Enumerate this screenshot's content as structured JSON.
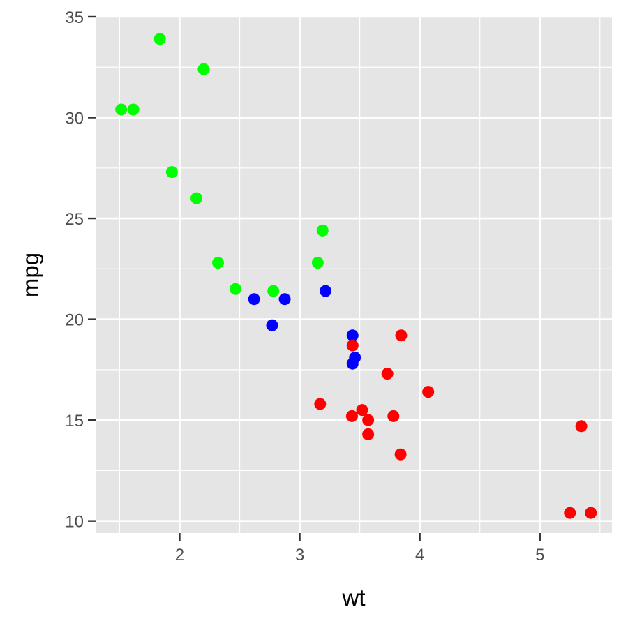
{
  "chart_data": {
    "type": "scatter",
    "title": "",
    "xlabel": "wt",
    "ylabel": "mpg",
    "xlim": [
      1.3,
      5.6
    ],
    "ylim": [
      9.4,
      35.0
    ],
    "xticks": [
      2,
      3,
      4,
      5
    ],
    "yticks": [
      10,
      15,
      20,
      25,
      30,
      35
    ],
    "x_tick_labels": [
      "2",
      "3",
      "4",
      "5"
    ],
    "y_tick_labels": [
      "10",
      "15",
      "20",
      "25",
      "30",
      "35"
    ],
    "grid": true,
    "legend": "none",
    "series": [
      {
        "color": "#00ff00",
        "points": [
          {
            "x": 1.835,
            "y": 33.9
          },
          {
            "x": 2.2,
            "y": 32.4
          },
          {
            "x": 1.513,
            "y": 30.4
          },
          {
            "x": 1.615,
            "y": 30.4
          },
          {
            "x": 1.935,
            "y": 27.3
          },
          {
            "x": 2.14,
            "y": 26.0
          },
          {
            "x": 3.19,
            "y": 24.4
          },
          {
            "x": 2.32,
            "y": 22.8
          },
          {
            "x": 3.15,
            "y": 22.8
          },
          {
            "x": 2.465,
            "y": 21.5
          },
          {
            "x": 2.78,
            "y": 21.4
          }
        ]
      },
      {
        "color": "#0000ff",
        "points": [
          {
            "x": 2.62,
            "y": 21.0
          },
          {
            "x": 2.875,
            "y": 21.0
          },
          {
            "x": 3.215,
            "y": 21.4
          },
          {
            "x": 2.77,
            "y": 19.7
          },
          {
            "x": 3.44,
            "y": 19.2
          },
          {
            "x": 3.46,
            "y": 18.1
          },
          {
            "x": 3.44,
            "y": 17.8
          }
        ]
      },
      {
        "color": "#ff0000",
        "points": [
          {
            "x": 3.44,
            "y": 18.7
          },
          {
            "x": 3.845,
            "y": 19.2
          },
          {
            "x": 3.73,
            "y": 17.3
          },
          {
            "x": 4.07,
            "y": 16.4
          },
          {
            "x": 3.17,
            "y": 15.8
          },
          {
            "x": 3.52,
            "y": 15.5
          },
          {
            "x": 3.435,
            "y": 15.2
          },
          {
            "x": 3.78,
            "y": 15.2
          },
          {
            "x": 3.57,
            "y": 15.0
          },
          {
            "x": 3.57,
            "y": 14.3
          },
          {
            "x": 5.345,
            "y": 14.7
          },
          {
            "x": 3.84,
            "y": 13.3
          },
          {
            "x": 5.25,
            "y": 10.4
          },
          {
            "x": 5.424,
            "y": 10.4
          }
        ]
      }
    ],
    "colors": {
      "panel_background": "#e5e5e5",
      "grid": "#ffffff",
      "tick": "#333333",
      "tick_label": "#4d4d4d"
    }
  }
}
